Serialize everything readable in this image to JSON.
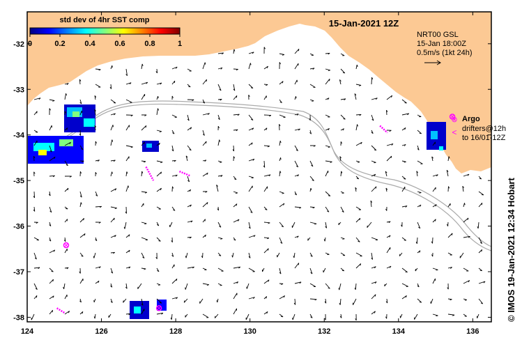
{
  "map": {
    "title": "15-Jan-2021 12Z",
    "colorbar": {
      "title": "std dev of 4hr SST comp",
      "ticks": [
        "0",
        "0.2",
        "0.4",
        "0.6",
        "0.8",
        "1"
      ],
      "colors": [
        "#000080",
        "#0000ff",
        "#0080ff",
        "#00ffff",
        "#80ff80",
        "#ffff00",
        "#ff8000",
        "#ff0000",
        "#800000"
      ]
    },
    "current_legend": {
      "line1": "NRT00 GSL",
      "line2": "15-Jan 18:00Z",
      "line3": "0.5m/s (1kt 24h)"
    },
    "argo_legend": {
      "label": "Argo",
      "drifters_line1": "drifters@12h",
      "drifters_line2": "to 16/01-12Z",
      "symbol": "⊗"
    },
    "credit": "© IMOS 19-Jan-2021 12:34 Hobart",
    "colors": {
      "land": "#fcc994",
      "ocean": "#ffffff",
      "argo": "#ff00ff",
      "arrow": "#000000",
      "isobath": "#aaaaaa"
    },
    "y_ticks": [
      "-32",
      "-33",
      "-34",
      "-35",
      "-36",
      "-37",
      "-38"
    ],
    "x_ticks": [
      "124",
      "126",
      "128",
      "130",
      "132",
      "134",
      "136"
    ],
    "extent": {
      "lon_min": 124,
      "lon_max": 136.5,
      "lat_min": -38.1,
      "lat_max": -31.3
    },
    "argo_floats": [
      {
        "lon": 125.05,
        "lat": -36.42
      },
      {
        "lon": 127.55,
        "lat": -37.8
      },
      {
        "lon": 135.45,
        "lat": -33.6
      }
    ],
    "drifter_tracks": [
      {
        "from": [
          127.2,
          -34.7
        ],
        "to": [
          127.4,
          -35.0
        ]
      },
      {
        "from": [
          128.1,
          -34.8
        ],
        "to": [
          128.4,
          -34.9
        ]
      },
      {
        "from": [
          133.5,
          -33.8
        ],
        "to": [
          133.7,
          -33.95
        ]
      },
      {
        "from": [
          124.8,
          -37.8
        ],
        "to": [
          125.0,
          -37.9
        ]
      }
    ]
  }
}
